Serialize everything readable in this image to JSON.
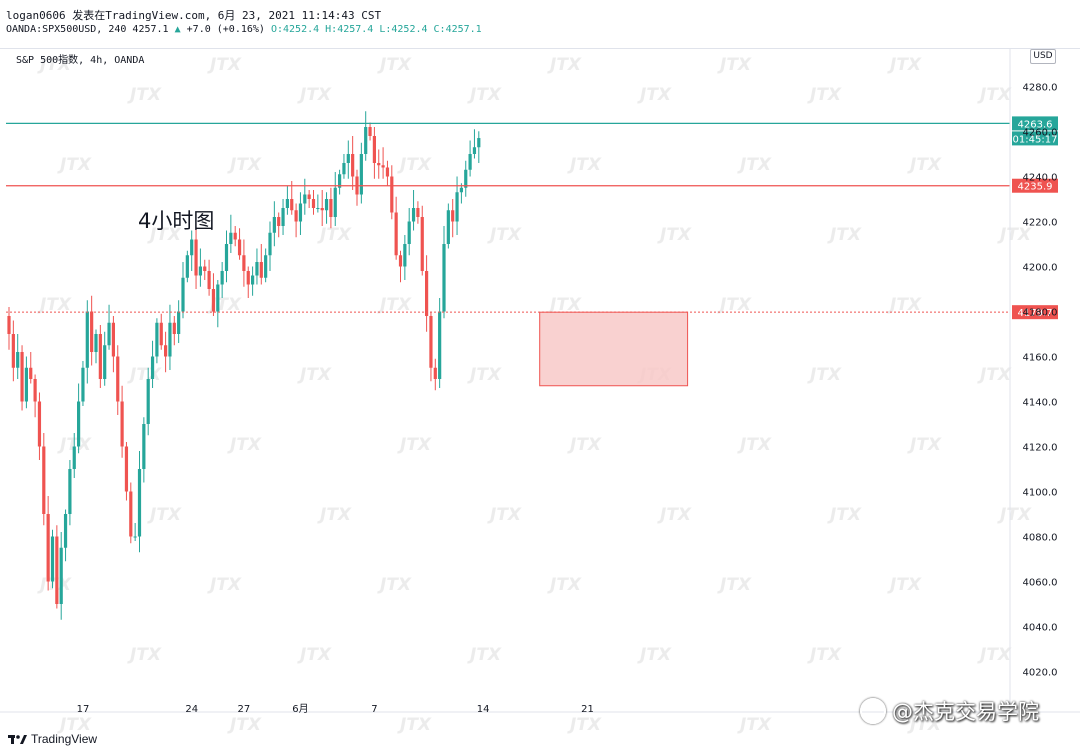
{
  "header": {
    "line1": "logan0606 发表在TradingView.com, 6月 23, 2021 11:14:43 CST",
    "symbol": "OANDA:SPX500USD, 240 4257.1",
    "change_arrow": "▲",
    "change": "+7.0 (+0.16%)",
    "ohlc": "O:4252.4 H:4257.4 L:4252.4 C:4257.1"
  },
  "chart_title": "S&P 500指数, 4h, OANDA",
  "currency": "USD",
  "annotation": "4小时图",
  "logo": {
    "name": "TradingView",
    "icon": "tradingview-logo-icon"
  },
  "credit": "@杰克交易学院",
  "watermark": "JTX",
  "colors": {
    "up": "#26a69a",
    "down": "#ef5350",
    "resistance_line": "#26a69a",
    "support_line": "#ef5350",
    "zone_fill": "#f8c9c8",
    "zone_border": "#ef5350"
  },
  "chart_data": {
    "type": "candlestick",
    "title": "S&P 500指数, 4h, OANDA",
    "ylim": [
      4010,
      4290
    ],
    "yticks": [
      4020,
      4040,
      4060,
      4080,
      4100,
      4120,
      4140,
      4160,
      4180,
      4200,
      4220,
      4240,
      4260,
      4280
    ],
    "ytick_labels": [
      "4020.0",
      "4040.0",
      "4060.0",
      "4080.0",
      "4100.0",
      "4120.0",
      "4140.0",
      "4160.0",
      "4180.0",
      "4200.0",
      "4220.0",
      "4240.0",
      "4260.0",
      "4280.0"
    ],
    "x_tick_labels": [
      {
        "label": "17",
        "bar": 17
      },
      {
        "label": "24",
        "bar": 42
      },
      {
        "label": "27",
        "bar": 54
      },
      {
        "label": "6月",
        "bar": 67
      },
      {
        "label": "7",
        "bar": 84
      },
      {
        "label": "14",
        "bar": 109
      },
      {
        "label": "21",
        "bar": 133
      }
    ],
    "levels": [
      {
        "value": 4263.6,
        "label": "4263.6",
        "style": "solid",
        "color": "#26a69a"
      },
      {
        "value": 4235.9,
        "label": "4235.9",
        "style": "solid",
        "color": "#ef5350"
      },
      {
        "value": 4179.7,
        "label": "4179.7",
        "style": "dotted",
        "color": "#ef5350"
      }
    ],
    "zone": {
      "from_bar": 122,
      "to_bar": 156,
      "top": 4179.7,
      "bottom": 4147
    },
    "current_price": 4257.1,
    "countdown": "01:45:17",
    "ohlc_path": [
      4178,
      4170,
      4155,
      4162,
      4140,
      4155,
      4150,
      4140,
      4120,
      4090,
      4060,
      4080,
      4050,
      4075,
      4090,
      4110,
      4120,
      4140,
      4155,
      4180,
      4162,
      4170,
      4150,
      4165,
      4175,
      4160,
      4140,
      4120,
      4100,
      4080,
      4080,
      4110,
      4130,
      4150,
      4160,
      4175,
      4165,
      4160,
      4175,
      4170,
      4180,
      4195,
      4205,
      4212,
      4196,
      4200,
      4198,
      4190,
      4180,
      4192,
      4198,
      4210,
      4215,
      4212,
      4205,
      4198,
      4192,
      4196,
      4202,
      4195,
      4205,
      4215,
      4222,
      4218,
      4226,
      4230,
      4225,
      4220,
      4228,
      4232,
      4230,
      4226,
      4226,
      4225,
      4230,
      4222,
      4235,
      4241,
      4246,
      4250,
      4240,
      4232,
      4250,
      4262,
      4258,
      4246,
      4245,
      4244,
      4240,
      4224,
      4205,
      4200,
      4210,
      4220,
      4226,
      4222,
      4198,
      4178,
      4155,
      4150,
      4180,
      4210,
      4225,
      4220,
      4233,
      4235,
      4243,
      4250,
      4253,
      4257.1
    ]
  }
}
